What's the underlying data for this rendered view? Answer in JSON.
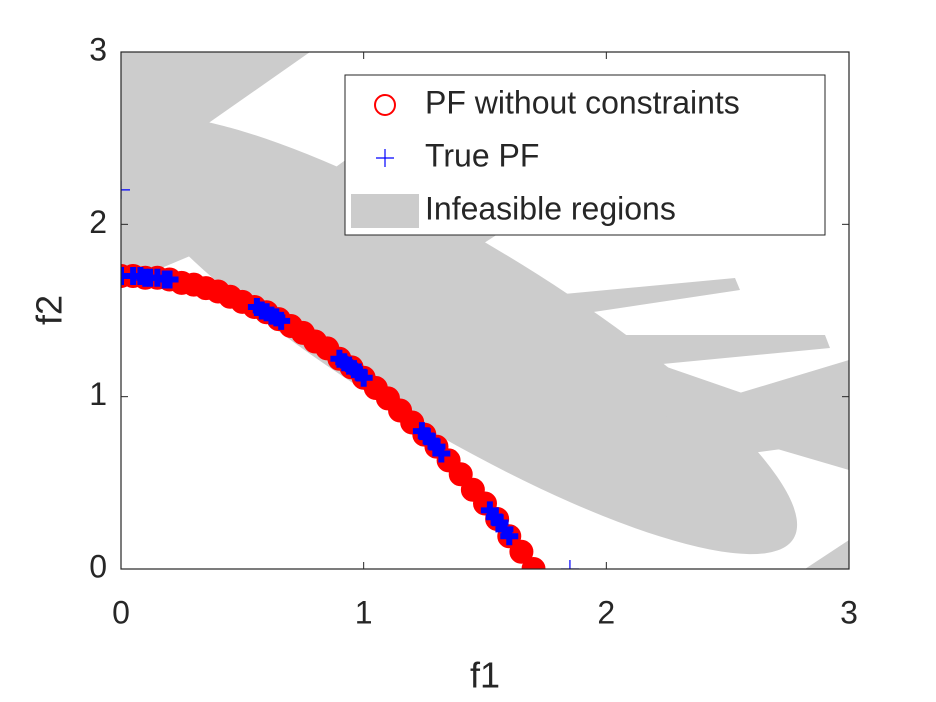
{
  "chart_data": {
    "type": "scatter",
    "xlabel": "f1",
    "ylabel": "f2",
    "xlim": [
      0,
      3
    ],
    "ylim": [
      0,
      3
    ],
    "xticks": [
      0,
      1,
      2,
      3
    ],
    "yticks": [
      0,
      1,
      2,
      3
    ],
    "legend": "upper right",
    "series": [
      {
        "name": "PF without constraints",
        "color": "#ff0000",
        "marker": "o",
        "x": [
          0,
          0.05,
          0.1,
          0.15,
          0.2,
          0.25,
          0.3,
          0.35,
          0.4,
          0.45,
          0.5,
          0.55,
          0.6,
          0.65,
          0.7,
          0.75,
          0.8,
          0.85,
          0.9,
          0.95,
          1.0,
          1.05,
          1.1,
          1.15,
          1.2,
          1.25,
          1.3,
          1.35,
          1.4,
          1.45,
          1.5,
          1.55,
          1.6,
          1.65,
          1.7
        ],
        "y": [
          1.7,
          1.7,
          1.69,
          1.69,
          1.68,
          1.66,
          1.65,
          1.63,
          1.61,
          1.58,
          1.55,
          1.52,
          1.49,
          1.45,
          1.41,
          1.37,
          1.32,
          1.28,
          1.22,
          1.17,
          1.11,
          1.05,
          0.99,
          0.92,
          0.85,
          0.78,
          0.71,
          0.63,
          0.55,
          0.46,
          0.38,
          0.29,
          0.19,
          0.1,
          0
        ]
      },
      {
        "name": "True PF",
        "color": "#0000ff",
        "marker": "+",
        "x": [
          0,
          0.0,
          0.05,
          0.08,
          0.1,
          0.12,
          0.15,
          0.18,
          0.2,
          0.56,
          0.58,
          0.6,
          0.62,
          0.64,
          0.66,
          0.9,
          0.92,
          0.94,
          0.96,
          0.98,
          1.0,
          1.24,
          1.26,
          1.28,
          1.3,
          1.32,
          1.52,
          1.54,
          1.56,
          1.58,
          1.6,
          1.85
        ],
        "y": [
          2.2,
          1.7,
          1.7,
          1.7,
          1.69,
          1.69,
          1.69,
          1.68,
          1.68,
          1.52,
          1.5,
          1.49,
          1.47,
          1.46,
          1.44,
          1.22,
          1.2,
          1.18,
          1.16,
          1.14,
          1.11,
          0.8,
          0.77,
          0.74,
          0.71,
          0.67,
          0.34,
          0.3,
          0.27,
          0.23,
          0.19,
          0
        ]
      },
      {
        "name": "Infeasible regions",
        "color": "#cccccc",
        "marker": "patch"
      }
    ]
  }
}
